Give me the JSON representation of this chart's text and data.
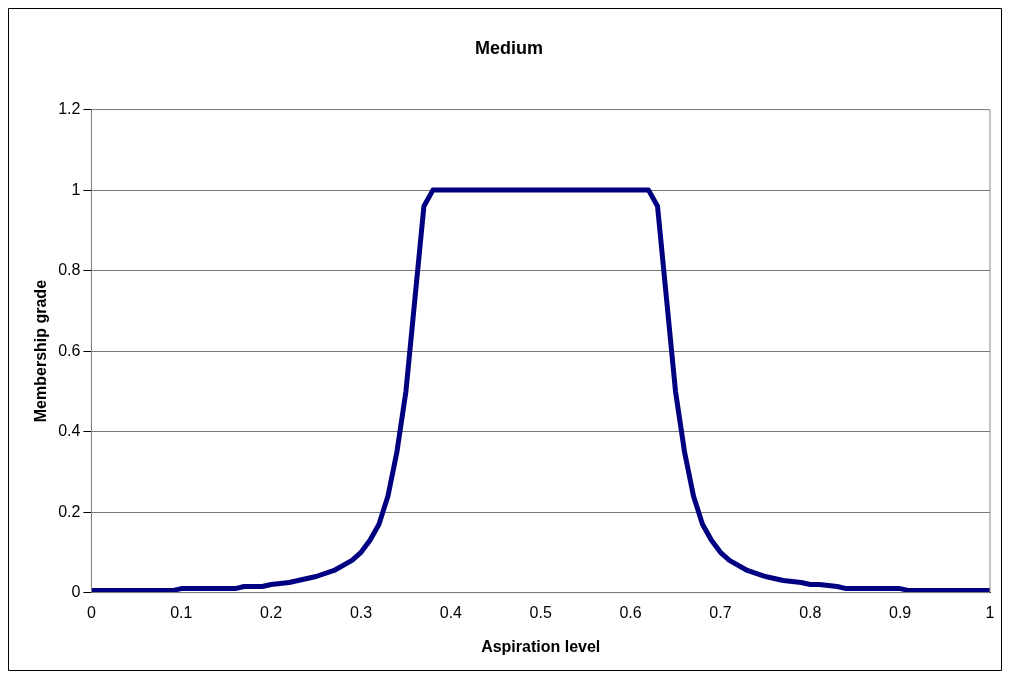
{
  "chart_data": {
    "type": "line",
    "title": "Medium",
    "xlabel": "Aspiration level",
    "ylabel": "Membership grade",
    "x": [
      0,
      0.09,
      0.1,
      0.16,
      0.17,
      0.19,
      0.2,
      0.22,
      0.25,
      0.27,
      0.29,
      0.3,
      0.31,
      0.32,
      0.33,
      0.34,
      0.35,
      0.36,
      0.37,
      0.38,
      0.62,
      0.63,
      0.64,
      0.65,
      0.66,
      0.67,
      0.68,
      0.69,
      0.7,
      0.71,
      0.73,
      0.75,
      0.77,
      0.79,
      0.8,
      0.81,
      0.83,
      0.84,
      0.9,
      0.91,
      1
    ],
    "series": [
      {
        "color": "#000080",
        "values": [
          0.005,
          0.005,
          0.01,
          0.01,
          0.015,
          0.015,
          0.02,
          0.025,
          0.04,
          0.055,
          0.08,
          0.1,
          0.13,
          0.17,
          0.24,
          0.35,
          0.5,
          0.73,
          0.96,
          1,
          1,
          0.96,
          0.73,
          0.5,
          0.35,
          0.24,
          0.17,
          0.13,
          0.1,
          0.08,
          0.055,
          0.04,
          0.03,
          0.025,
          0.02,
          0.02,
          0.015,
          0.01,
          0.01,
          0.005,
          0.005
        ]
      }
    ],
    "xlim": [
      0,
      1
    ],
    "xticks": [
      0,
      0.1,
      0.2,
      0.3,
      0.4,
      0.5,
      0.6,
      0.7,
      0.8,
      0.9,
      1
    ],
    "ylim": [
      0,
      1.2
    ],
    "yticks": [
      0,
      0.2,
      0.4,
      0.6,
      0.8,
      1,
      1.2
    ],
    "grid": "y",
    "legend": false,
    "marker": "none",
    "line_style": "solid"
  }
}
